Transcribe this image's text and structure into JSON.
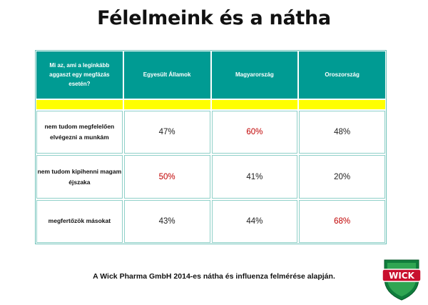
{
  "title": "Félelmeink és a nátha",
  "chart_data": {
    "type": "table",
    "question": "Mi az, ami a leginkább aggaszt egy megfázás esetén?",
    "columns": [
      "Egyesült Államok",
      "Magyarország",
      "Oroszország"
    ],
    "rows": [
      {
        "label": "nem tudom megfelelően elvégezni a munkám",
        "values": [
          "47%",
          "60%",
          "48%"
        ],
        "highlight": [
          false,
          true,
          false
        ]
      },
      {
        "label": "nem tudom kipihenni magam éjszaka",
        "values": [
          "50%",
          "41%",
          "20%"
        ],
        "highlight": [
          true,
          false,
          false
        ]
      },
      {
        "label": "megfertőzök másokat",
        "values": [
          "43%",
          "44%",
          "68%"
        ],
        "highlight": [
          false,
          false,
          true
        ]
      }
    ]
  },
  "colors": {
    "header": "#009b93",
    "band": "#ffff00",
    "highlight": "#c00000",
    "border": "#8fd0c8"
  },
  "footer": "A Wick Pharma GmbH 2014-es nátha és influenza felmérése alapján.",
  "logo": {
    "text": "WICK",
    "icon": "wick-shield-logo-icon"
  }
}
